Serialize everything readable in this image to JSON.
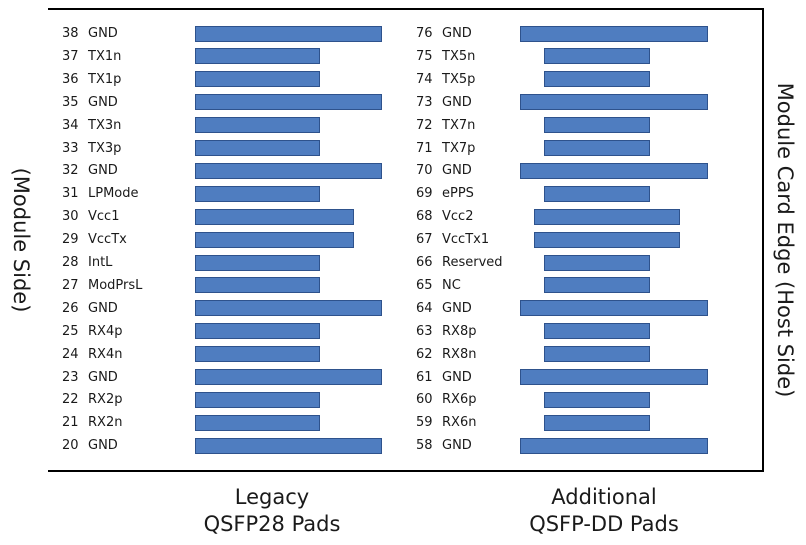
{
  "side_labels": {
    "left": "(Module Side)",
    "right": "Module Card Edge (Host Side)"
  },
  "colors": {
    "pad_fill": "#4f7dc0",
    "pad_border": "#2e528c",
    "outline": "#000000"
  },
  "legacy_column": {
    "caption_line1": "Legacy",
    "caption_line2": "QSFP28 Pads",
    "pins": [
      {
        "num": "38",
        "name": "GND",
        "pad": "long"
      },
      {
        "num": "37",
        "name": "TX1n",
        "pad": "short"
      },
      {
        "num": "36",
        "name": "TX1p",
        "pad": "short"
      },
      {
        "num": "35",
        "name": "GND",
        "pad": "long"
      },
      {
        "num": "34",
        "name": "TX3n",
        "pad": "short"
      },
      {
        "num": "33",
        "name": "TX3p",
        "pad": "short"
      },
      {
        "num": "32",
        "name": "GND",
        "pad": "long"
      },
      {
        "num": "31",
        "name": "LPMode",
        "pad": "short"
      },
      {
        "num": "30",
        "name": "Vcc1",
        "pad": "medium"
      },
      {
        "num": "29",
        "name": "VccTx",
        "pad": "medium"
      },
      {
        "num": "28",
        "name": "IntL",
        "pad": "short"
      },
      {
        "num": "27",
        "name": "ModPrsL",
        "pad": "short"
      },
      {
        "num": "26",
        "name": "GND",
        "pad": "long"
      },
      {
        "num": "25",
        "name": "RX4p",
        "pad": "short"
      },
      {
        "num": "24",
        "name": "RX4n",
        "pad": "short"
      },
      {
        "num": "23",
        "name": "GND",
        "pad": "long"
      },
      {
        "num": "22",
        "name": "RX2p",
        "pad": "short"
      },
      {
        "num": "21",
        "name": "RX2n",
        "pad": "short"
      },
      {
        "num": "20",
        "name": "GND",
        "pad": "long"
      }
    ]
  },
  "additional_column": {
    "caption_line1": "Additional",
    "caption_line2": "QSFP-DD Pads",
    "pins": [
      {
        "num": "76",
        "name": "GND",
        "pad": "long"
      },
      {
        "num": "75",
        "name": "TX5n",
        "pad": "short"
      },
      {
        "num": "74",
        "name": "TX5p",
        "pad": "short"
      },
      {
        "num": "73",
        "name": "GND",
        "pad": "long"
      },
      {
        "num": "72",
        "name": "TX7n",
        "pad": "short"
      },
      {
        "num": "71",
        "name": "TX7p",
        "pad": "short"
      },
      {
        "num": "70",
        "name": "GND",
        "pad": "long"
      },
      {
        "num": "69",
        "name": "ePPS",
        "pad": "short"
      },
      {
        "num": "68",
        "name": "Vcc2",
        "pad": "medium"
      },
      {
        "num": "67",
        "name": "VccTx1",
        "pad": "medium"
      },
      {
        "num": "66",
        "name": "Reserved",
        "pad": "short"
      },
      {
        "num": "65",
        "name": "NC",
        "pad": "short"
      },
      {
        "num": "64",
        "name": "GND",
        "pad": "long"
      },
      {
        "num": "63",
        "name": "RX8p",
        "pad": "short"
      },
      {
        "num": "62",
        "name": "RX8n",
        "pad": "short"
      },
      {
        "num": "61",
        "name": "GND",
        "pad": "long"
      },
      {
        "num": "60",
        "name": "RX6p",
        "pad": "short"
      },
      {
        "num": "59",
        "name": "RX6n",
        "pad": "short"
      },
      {
        "num": "58",
        "name": "GND",
        "pad": "long"
      }
    ]
  }
}
